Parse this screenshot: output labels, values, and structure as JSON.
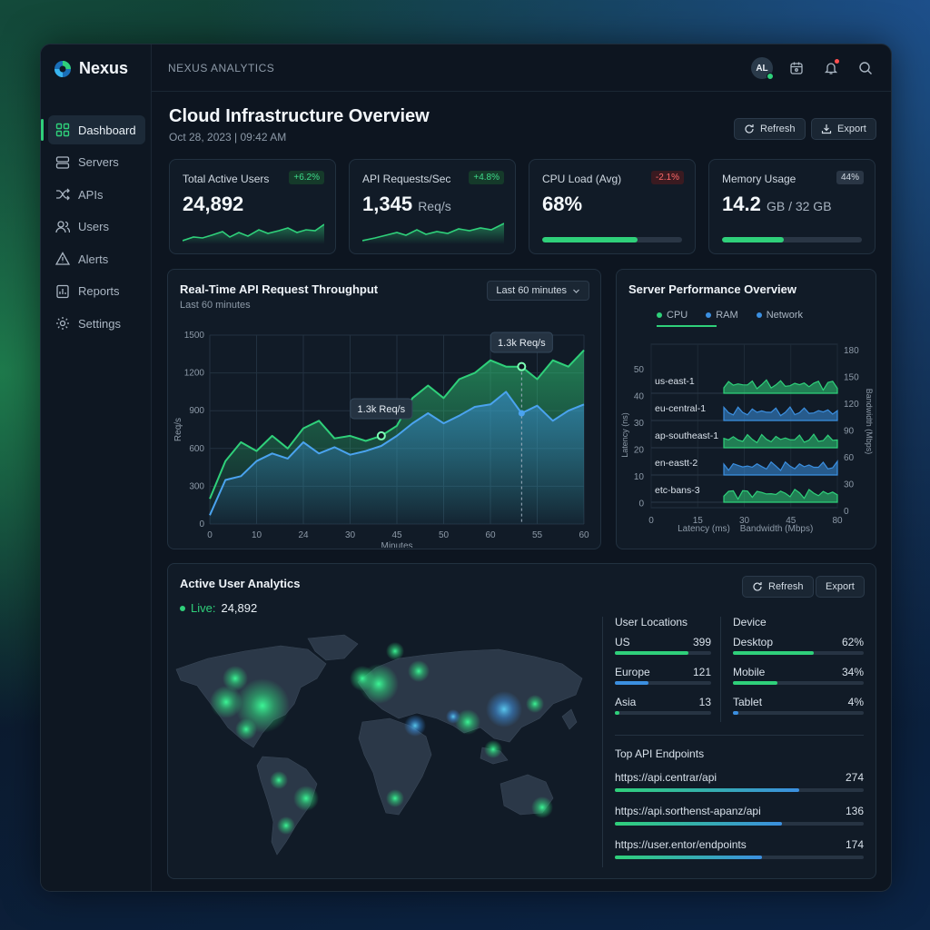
{
  "brand": {
    "name": "Nexus"
  },
  "sidebar": {
    "items": [
      {
        "label": "Dashboard",
        "icon": "grid-icon",
        "active": true
      },
      {
        "label": "Servers",
        "icon": "server-icon"
      },
      {
        "label": "APIs",
        "icon": "shuffle-icon"
      },
      {
        "label": "Users",
        "icon": "users-icon"
      },
      {
        "label": "Alerts",
        "icon": "alert-icon"
      },
      {
        "label": "Reports",
        "icon": "report-icon"
      },
      {
        "label": "Settings",
        "icon": "gear-icon"
      }
    ]
  },
  "topbar": {
    "title": "NEXUS ANALYTICS",
    "avatar_initials": "AL"
  },
  "page": {
    "title": "Cloud Infrastructure Overview",
    "date": "Oct 28, 2023 | 09:42 AM",
    "refresh_label": "Refresh",
    "export_label": "Export"
  },
  "kpis": [
    {
      "label": "Total Active Users",
      "value": "24,892",
      "unit": "",
      "delta": "+6.2%",
      "trend": "up"
    },
    {
      "label": "API Requests/Sec",
      "value": "1,345",
      "unit": "Req/s",
      "delta": "+4.8%",
      "trend": "up"
    },
    {
      "label": "CPU Load (Avg)",
      "value": "68%",
      "unit": "",
      "delta": "-2.1%",
      "trend": "down",
      "progress": 0.68
    },
    {
      "label": "Memory Usage",
      "value": "14.2",
      "unit": "GB / 32 GB",
      "delta": "44%",
      "trend": "neutral",
      "progress": 0.44
    }
  ],
  "throughput": {
    "title": "Real-Time API Request Throughput",
    "subtitle": "Last 60 minutes",
    "range_label": "Last 60 minutes",
    "tooltip_1": "1.3k Req/s",
    "tooltip_2": "1.3k Req/s"
  },
  "server_perf": {
    "title": "Server Performance Overview",
    "legend": [
      "CPU",
      "RAM",
      "Network"
    ],
    "servers": [
      "us-east-1",
      "eu-central-1",
      "ap-southeast-1",
      "en-eastt-2",
      "etc-bans-3"
    ],
    "left_axis_label": "Latency (ns)",
    "right_axis_label": "Bandwidth (Mbps)",
    "left_ticks": [
      "50",
      "40",
      "30",
      "20",
      "10",
      "0"
    ],
    "right_ticks": [
      "180",
      "150",
      "120",
      "90",
      "60",
      "30",
      "0"
    ],
    "x_ticks": [
      "0",
      "15",
      "30",
      "45",
      "80"
    ],
    "x_label_1": "Latency (ms)",
    "x_label_2": "Bandwidth (Mbps)"
  },
  "users": {
    "title": "Active User Analytics",
    "live_label": "Live:",
    "live_value": "24,892",
    "refresh_label": "Refresh",
    "export_label": "Export",
    "locations_title": "User Locations",
    "locations": [
      {
        "label": "US",
        "value": "399",
        "fraction": 0.76
      },
      {
        "label": "Europe",
        "value": "121",
        "fraction": 0.35
      },
      {
        "label": "Asia",
        "value": "13",
        "fraction": 0.05
      }
    ],
    "device_title": "Device",
    "devices": [
      {
        "label": "Desktop",
        "value": "62%",
        "fraction": 0.62
      },
      {
        "label": "Mobile",
        "value": "34%",
        "fraction": 0.34
      },
      {
        "label": "Tablet",
        "value": "4%",
        "fraction": 0.04
      }
    ],
    "endpoints_title": "Top API Endpoints",
    "endpoints": [
      {
        "label": "https://api.centrar/api",
        "value": "274",
        "fraction": 0.74
      },
      {
        "label": "https://api.sorthenst-apanz/api",
        "value": "136",
        "fraction": 0.67
      },
      {
        "label": "https://user.entor/endpoints",
        "value": "174",
        "fraction": 0.59
      }
    ]
  },
  "colors": {
    "accent_green": "#2fd07a",
    "accent_blue": "#3b8fe0",
    "alert_red": "#ff4f4f"
  },
  "chart_data": {
    "type": "area",
    "title": "Real-Time API Request Throughput",
    "xlabel": "Minutes",
    "ylabel": "Req/s",
    "x_tick_labels": [
      "0",
      "10",
      "24",
      "30",
      "45",
      "50",
      "60",
      "55",
      "60"
    ],
    "y_tick_labels": [
      "1500",
      "1200",
      "900",
      "600",
      "300",
      "0"
    ],
    "ylim": [
      0,
      1500
    ],
    "grid": true,
    "x": [
      0,
      2.5,
      5,
      7.5,
      10,
      12.5,
      15,
      17.5,
      20,
      22.5,
      25,
      27.5,
      30,
      32.5,
      35,
      37.5,
      40,
      42.5,
      45,
      47.5,
      50,
      52.5,
      55,
      57.5,
      60
    ],
    "series": [
      {
        "values": [
          200,
          500,
          650,
          580,
          700,
          600,
          760,
          820,
          680,
          700,
          660,
          700,
          780,
          1000,
          1100,
          1000,
          1150,
          1200,
          1300,
          1250,
          1250,
          1150,
          1300,
          1250,
          1380
        ]
      },
      {
        "values": [
          70,
          350,
          380,
          500,
          560,
          520,
          650,
          560,
          610,
          550,
          580,
          620,
          700,
          800,
          880,
          800,
          860,
          930,
          950,
          1050,
          880,
          940,
          820,
          900,
          950
        ]
      }
    ]
  }
}
